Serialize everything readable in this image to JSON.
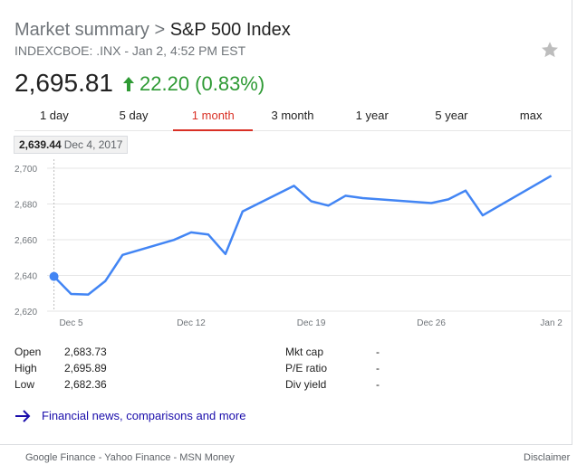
{
  "header": {
    "title_prefix": "Market summary > ",
    "title_main": "S&P 500 Index",
    "subtitle": "INDEXCBOE: .INX - Jan 2, 4:52 PM EST",
    "price": "2,695.81",
    "change": "22.20 (0.83%)",
    "colors": {
      "positive": "#2e9a34",
      "accent": "#d93025",
      "line": "#4285f4"
    }
  },
  "tabs": [
    {
      "label": "1 day"
    },
    {
      "label": "5 day"
    },
    {
      "label": "1 month",
      "active": true
    },
    {
      "label": "3 month"
    },
    {
      "label": "1 year"
    },
    {
      "label": "5 year"
    },
    {
      "label": "max"
    }
  ],
  "tooltip": {
    "value": "2,639.44",
    "date": "Dec 4, 2017"
  },
  "chart_data": {
    "type": "line",
    "title": "",
    "xlabel": "",
    "ylabel": "",
    "ylim": [
      2620,
      2700
    ],
    "yticks": [
      "2,700",
      "2,680",
      "2,660",
      "2,640",
      "2,620"
    ],
    "yticks_values": [
      2700,
      2680,
      2660,
      2640,
      2620
    ],
    "xticks": [
      "Dec 5",
      "Dec 12",
      "Dec 19",
      "Dec 26",
      "Jan 2"
    ],
    "xticks_dates": [
      "2017-12-05",
      "2017-12-12",
      "2017-12-19",
      "2017-12-26",
      "2018-01-02"
    ],
    "grid": true,
    "series": [
      {
        "x": [
          "2017-12-04",
          "2017-12-05",
          "2017-12-06",
          "2017-12-07",
          "2017-12-08",
          "2017-12-11",
          "2017-12-12",
          "2017-12-13",
          "2017-12-14",
          "2017-12-15",
          "2017-12-18",
          "2017-12-19",
          "2017-12-20",
          "2017-12-21",
          "2017-12-22",
          "2017-12-26",
          "2017-12-27",
          "2017-12-28",
          "2017-12-29",
          "2018-01-02"
        ],
        "values": [
          2639.44,
          2629.6,
          2629.3,
          2636.9,
          2651.5,
          2659.9,
          2664.1,
          2662.9,
          2652.0,
          2675.8,
          2690.2,
          2681.5,
          2679.1,
          2684.6,
          2683.3,
          2680.5,
          2682.6,
          2687.5,
          2673.6,
          2695.81
        ]
      }
    ]
  },
  "stats": {
    "left": [
      {
        "label": "Open",
        "value": "2,683.73"
      },
      {
        "label": "High",
        "value": "2,695.89"
      },
      {
        "label": "Low",
        "value": "2,682.36"
      }
    ],
    "right": [
      {
        "label": "Mkt cap",
        "value": "-"
      },
      {
        "label": "P/E ratio",
        "value": "-"
      },
      {
        "label": "Div yield",
        "value": "-"
      }
    ]
  },
  "more_link": "Financial news, comparisons and more",
  "footer": {
    "sources": [
      "Google Finance",
      "Yahoo Finance",
      "MSN Money"
    ],
    "separator": " - ",
    "disclaimer": "Disclaimer"
  }
}
